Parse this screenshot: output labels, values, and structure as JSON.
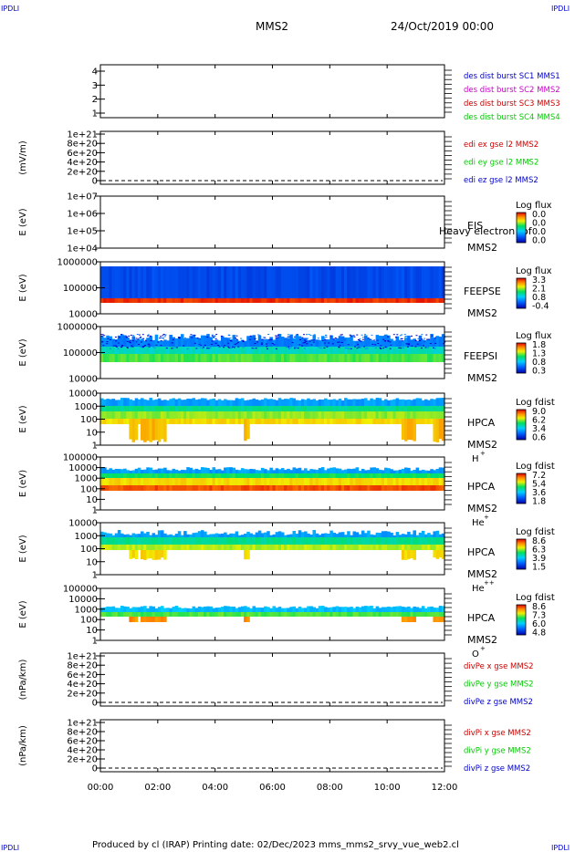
{
  "corners": {
    "tl": "IPDLI",
    "tr": "IPDLI",
    "bl": "IPDLI",
    "br": "IPDLI"
  },
  "header": {
    "spacecraft": "MMS2",
    "datetime": "24/Oct/2019 00:00"
  },
  "footer": {
    "text": "Produced by cl (IRAP)   Printing date: 02/Dec/2023   mms_mms2_srvy_vue_web2.cl"
  },
  "colors": {
    "blue": "#0000cc",
    "magenta": "#cc00cc",
    "red": "#cc0000",
    "green": "#00cc00"
  },
  "chart_data": {
    "type": "heatmap",
    "x_ticks": [
      "00:00",
      "02:00",
      "04:00",
      "06:00",
      "08:00",
      "10:00",
      "12:00"
    ],
    "xlim_hours": [
      0,
      12
    ],
    "panels": [
      {
        "id": "des-dist",
        "kind": "line",
        "ylabel": "",
        "yticks": [
          "1",
          "2",
          "3",
          "4"
        ],
        "legend": [
          {
            "text": "des dist burst SC1 MMS1",
            "color": "#0000cc"
          },
          {
            "text": "des dist burst SC2 MMS2",
            "color": "#cc00cc"
          },
          {
            "text": "des dist burst SC3 MMS3",
            "color": "#cc0000"
          },
          {
            "text": "des dist burst SC4 MMS4",
            "color": "#00cc00"
          }
        ]
      },
      {
        "id": "edi-e",
        "kind": "line",
        "ylabel": "(mV/m)",
        "yticks": [
          "0",
          "2e+20",
          "4e+20",
          "6e+20",
          "8e+20",
          "1e+21"
        ],
        "legend": [
          {
            "text": "edi ex gse l2 MMS2",
            "color": "#cc0000"
          },
          {
            "text": "edi ey gse l2 MMS2",
            "color": "#00cc00"
          },
          {
            "text": "edi ez gse l2 MMS2",
            "color": "#0000cc"
          }
        ]
      },
      {
        "id": "eis",
        "kind": "spec",
        "ylabel": "E (eV)",
        "yticks": [
          "1e+04",
          "1e+05",
          "1e+06",
          "1e+07"
        ],
        "inst": "EIS",
        "inst2": "MMS2",
        "extra": "Heavy electron tof",
        "cb_title": "Log flux",
        "cb_labels": [
          "0.0",
          "0.0",
          "0.0",
          "0.0"
        ],
        "data": "none"
      },
      {
        "id": "feepse",
        "kind": "spec",
        "ylabel": "E (eV)",
        "yticks": [
          "10000",
          "100000",
          "1000000"
        ],
        "inst": "FEEPSE",
        "inst2": "MMS2",
        "cb_title": "Log flux",
        "cb_labels": [
          "3.3",
          "2.1",
          "0.8",
          "-0.4"
        ],
        "data": "feepse"
      },
      {
        "id": "feepsi",
        "kind": "spec",
        "ylabel": "E (eV)",
        "yticks": [
          "10000",
          "100000",
          "1000000"
        ],
        "inst": "FEEPSI",
        "inst2": "MMS2",
        "cb_title": "Log flux",
        "cb_labels": [
          "1.8",
          "1.3",
          "0.8",
          "0.3"
        ],
        "data": "feepsi"
      },
      {
        "id": "hpca-h",
        "kind": "spec",
        "ylabel": "E (eV)",
        "yticks": [
          "1",
          "10",
          "100",
          "1000",
          "10000"
        ],
        "inst": "HPCA",
        "inst2": "MMS2",
        "species": "H",
        "charge": "+",
        "cb_title": "Log fdist",
        "cb_labels": [
          "9.0",
          "6.2",
          "3.4",
          "0.6"
        ],
        "data": "hpca_h"
      },
      {
        "id": "hpca-he",
        "kind": "spec",
        "ylabel": "E (eV)",
        "yticks": [
          "1",
          "10",
          "100",
          "1000",
          "10000",
          "100000"
        ],
        "inst": "HPCA",
        "inst2": "MMS2",
        "species": "He",
        "charge": "+",
        "cb_title": "Log fdist",
        "cb_labels": [
          "7.2",
          "5.4",
          "3.6",
          "1.8"
        ],
        "data": "hpca_he"
      },
      {
        "id": "hpca-hepp",
        "kind": "spec",
        "ylabel": "E (eV)",
        "yticks": [
          "1",
          "10",
          "100",
          "1000",
          "10000"
        ],
        "inst": "HPCA",
        "inst2": "MMS2",
        "species": "He",
        "charge": "++",
        "cb_title": "Log fdist",
        "cb_labels": [
          "8.6",
          "6.3",
          "3.9",
          "1.5"
        ],
        "data": "hpca_hepp"
      },
      {
        "id": "hpca-o",
        "kind": "spec",
        "ylabel": "E (eV)",
        "yticks": [
          "1",
          "10",
          "100",
          "1000",
          "10000",
          "100000"
        ],
        "inst": "HPCA",
        "inst2": "MMS2",
        "species": "O",
        "charge": "+",
        "cb_title": "Log fdist",
        "cb_labels": [
          "8.6",
          "7.3",
          "6.0",
          "4.8"
        ],
        "data": "hpca_o"
      },
      {
        "id": "divpe",
        "kind": "line",
        "ylabel": "(nPa/km)",
        "yticks": [
          "0",
          "2e+20",
          "4e+20",
          "6e+20",
          "8e+20",
          "1e+21"
        ],
        "legend": [
          {
            "text": "divPe x gse MMS2",
            "color": "#cc0000"
          },
          {
            "text": "divPe y gse MMS2",
            "color": "#00cc00"
          },
          {
            "text": "divPe z gse MMS2",
            "color": "#0000cc"
          }
        ]
      },
      {
        "id": "divpi",
        "kind": "line",
        "ylabel": "(nPa/km)",
        "yticks": [
          "0",
          "2e+20",
          "4e+20",
          "6e+20",
          "8e+20",
          "1e+21"
        ],
        "legend": [
          {
            "text": "divPi x gse MMS2",
            "color": "#cc0000"
          },
          {
            "text": "divPi y gse MMS2",
            "color": "#00cc00"
          },
          {
            "text": "divPi z gse MMS2",
            "color": "#0000cc"
          }
        ]
      }
    ]
  }
}
